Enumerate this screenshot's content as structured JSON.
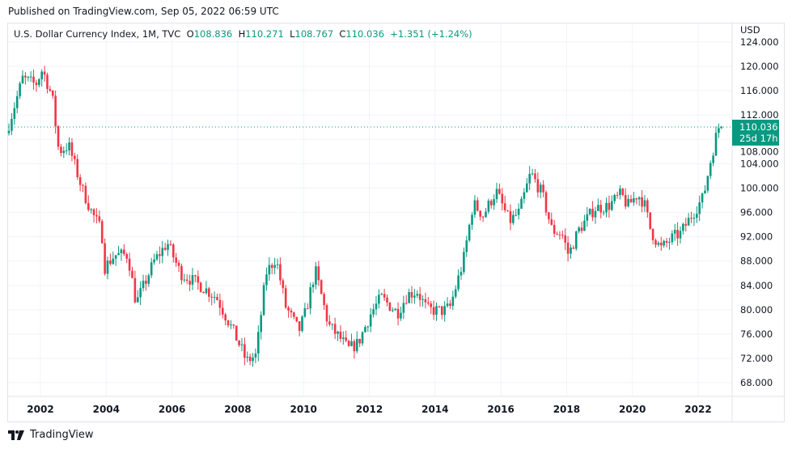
{
  "published": "Published on TradingView.com, Sep 05, 2022 06:59 UTC",
  "legend": {
    "symbol": "U.S. Dollar Currency Index, 1M, TVC",
    "o_label": "O",
    "o": "108.836",
    "h_label": "H",
    "h": "110.271",
    "l_label": "L",
    "l": "108.767",
    "c_label": "C",
    "c": "110.036",
    "change": "+1.351 (+1.24%)"
  },
  "logo_text": "TradingView",
  "colors": {
    "up": "#089981",
    "down": "#f23645",
    "grid": "#f0f3fa"
  },
  "chart_data": {
    "type": "candlestick",
    "title": "U.S. Dollar Currency Index, 1M, TVC",
    "currency": "USD",
    "ylim": [
      66,
      124.5
    ],
    "y_ticks": [
      "68.000",
      "72.000",
      "76.000",
      "80.000",
      "84.000",
      "88.000",
      "92.000",
      "96.000",
      "100.000",
      "104.000",
      "108.000",
      "112.000",
      "116.000",
      "120.000",
      "124.000"
    ],
    "x_ticks": [
      "2002",
      "2004",
      "2006",
      "2008",
      "2010",
      "2012",
      "2014",
      "2016",
      "2018",
      "2020",
      "2022"
    ],
    "xlim": [
      2001.0,
      2023.05
    ],
    "last_price": "110.036",
    "last_price_value": 110.036,
    "countdown": "25d 17h",
    "path_keypoints": [
      [
        2001.0,
        109
      ],
      [
        2001.5,
        118
      ],
      [
        2001.9,
        117
      ],
      [
        2002.1,
        119.5
      ],
      [
        2002.4,
        115
      ],
      [
        2002.6,
        106
      ],
      [
        2002.9,
        107
      ],
      [
        2003.3,
        100
      ],
      [
        2003.6,
        96
      ],
      [
        2003.9,
        93
      ],
      [
        2004.0,
        87
      ],
      [
        2004.3,
        89
      ],
      [
        2004.7,
        89
      ],
      [
        2004.95,
        81
      ],
      [
        2005.5,
        88
      ],
      [
        2005.9,
        91
      ],
      [
        2006.3,
        86
      ],
      [
        2006.6,
        85
      ],
      [
        2006.9,
        84
      ],
      [
        2007.4,
        82
      ],
      [
        2007.9,
        76.5
      ],
      [
        2008.2,
        73
      ],
      [
        2008.3,
        71.5
      ],
      [
        2008.6,
        72.5
      ],
      [
        2008.9,
        86
      ],
      [
        2009.2,
        88.5
      ],
      [
        2009.5,
        80.5
      ],
      [
        2009.9,
        76.5
      ],
      [
        2010.1,
        79.5
      ],
      [
        2010.4,
        86.5
      ],
      [
        2010.6,
        82
      ],
      [
        2010.8,
        77.5
      ],
      [
        2011.2,
        75
      ],
      [
        2011.4,
        73.5
      ],
      [
        2011.7,
        74.5
      ],
      [
        2012.1,
        79.5
      ],
      [
        2012.4,
        82
      ],
      [
        2012.6,
        81
      ],
      [
        2012.9,
        79.5
      ],
      [
        2013.2,
        82.5
      ],
      [
        2013.5,
        83
      ],
      [
        2013.8,
        80
      ],
      [
        2014.3,
        79.8
      ],
      [
        2014.5,
        80.5
      ],
      [
        2014.9,
        88
      ],
      [
        2015.2,
        97.5
      ],
      [
        2015.5,
        95.5
      ],
      [
        2015.9,
        99.5
      ],
      [
        2016.3,
        94.5
      ],
      [
        2016.6,
        96
      ],
      [
        2016.95,
        102.5
      ],
      [
        2017.3,
        99
      ],
      [
        2017.6,
        93
      ],
      [
        2017.9,
        92.5
      ],
      [
        2018.1,
        89
      ],
      [
        2018.4,
        93
      ],
      [
        2018.9,
        96.7
      ],
      [
        2019.3,
        97
      ],
      [
        2019.7,
        99
      ],
      [
        2019.9,
        97
      ],
      [
        2020.2,
        99
      ],
      [
        2020.4,
        97.5
      ],
      [
        2020.6,
        93
      ],
      [
        2020.9,
        90
      ],
      [
        2021.3,
        92
      ],
      [
        2021.5,
        92.5
      ],
      [
        2021.9,
        96
      ],
      [
        2022.2,
        98.5
      ],
      [
        2022.4,
        104
      ],
      [
        2022.6,
        108.8
      ],
      [
        2022.67,
        110.036
      ]
    ]
  }
}
